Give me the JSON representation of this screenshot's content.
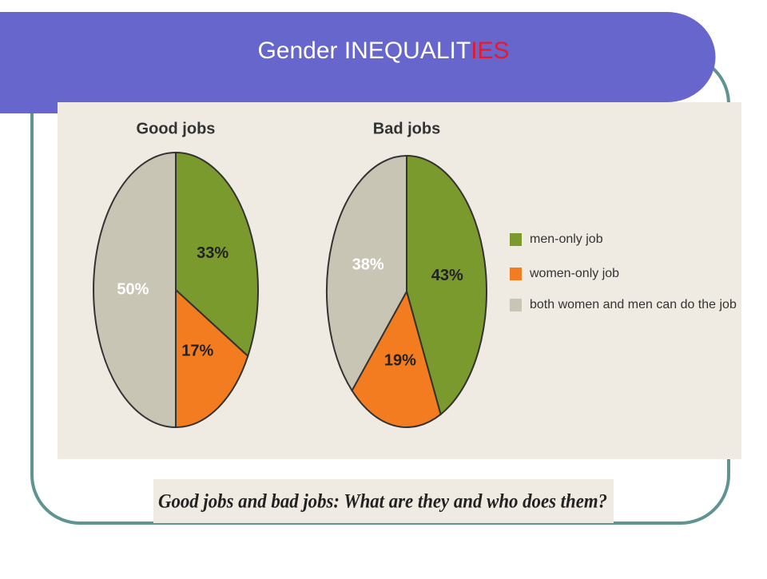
{
  "title": {
    "main": "Gender INEQUALIT",
    "highlight": "IES"
  },
  "caption": "Good jobs and bad jobs: What are they and who does them?",
  "legend": {
    "labels": [
      "men-only job",
      "women-only job",
      "both women and men can do the job"
    ],
    "colors": [
      "#7a9a2e",
      "#f47c20",
      "#c9c5b5"
    ]
  },
  "chart_data": [
    {
      "type": "pie",
      "title": "Good jobs",
      "values": [
        33,
        17,
        50
      ],
      "value_labels": [
        "33%",
        "17%",
        "50%"
      ]
    },
    {
      "type": "pie",
      "title": "Bad jobs",
      "values": [
        43,
        19,
        38
      ],
      "value_labels": [
        "43%",
        "19%",
        "38%"
      ]
    }
  ]
}
